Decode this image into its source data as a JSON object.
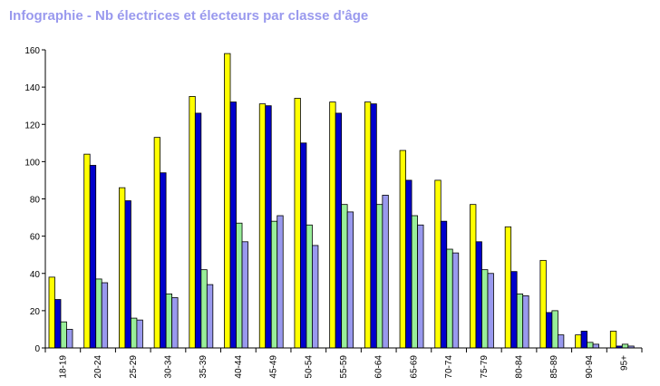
{
  "title": "Infographie - Nb électrices et électeurs par classe d'âge",
  "chart_data": {
    "type": "bar",
    "title": "Infographie - Nb électrices et électeurs par classe d'âge",
    "xlabel": "",
    "ylabel": "",
    "ylim": [
      0,
      160
    ],
    "yticks": [
      0,
      20,
      40,
      60,
      80,
      100,
      120,
      140,
      160
    ],
    "grid": false,
    "categories": [
      "18-19",
      "20-24",
      "25-29",
      "30-34",
      "35-39",
      "40-44",
      "45-49",
      "50-54",
      "55-59",
      "60-64",
      "65-69",
      "70-74",
      "75-79",
      "80-84",
      "85-89",
      "90-94",
      "95+"
    ],
    "series": [
      {
        "color": "#ffff00",
        "values": [
          38,
          104,
          86,
          113,
          135,
          158,
          131,
          134,
          132,
          132,
          106,
          90,
          77,
          65,
          47,
          7,
          9
        ]
      },
      {
        "color": "#0000cc",
        "values": [
          26,
          98,
          79,
          94,
          126,
          132,
          130,
          110,
          126,
          131,
          90,
          68,
          57,
          41,
          19,
          9,
          1
        ]
      },
      {
        "color": "#99ee99",
        "values": [
          14,
          37,
          16,
          29,
          42,
          67,
          68,
          66,
          77,
          77,
          71,
          53,
          42,
          29,
          20,
          3,
          2
        ]
      },
      {
        "color": "#9999ee",
        "values": [
          10,
          35,
          15,
          27,
          34,
          57,
          71,
          55,
          73,
          82,
          66,
          51,
          40,
          28,
          7,
          2,
          1
        ]
      }
    ]
  }
}
